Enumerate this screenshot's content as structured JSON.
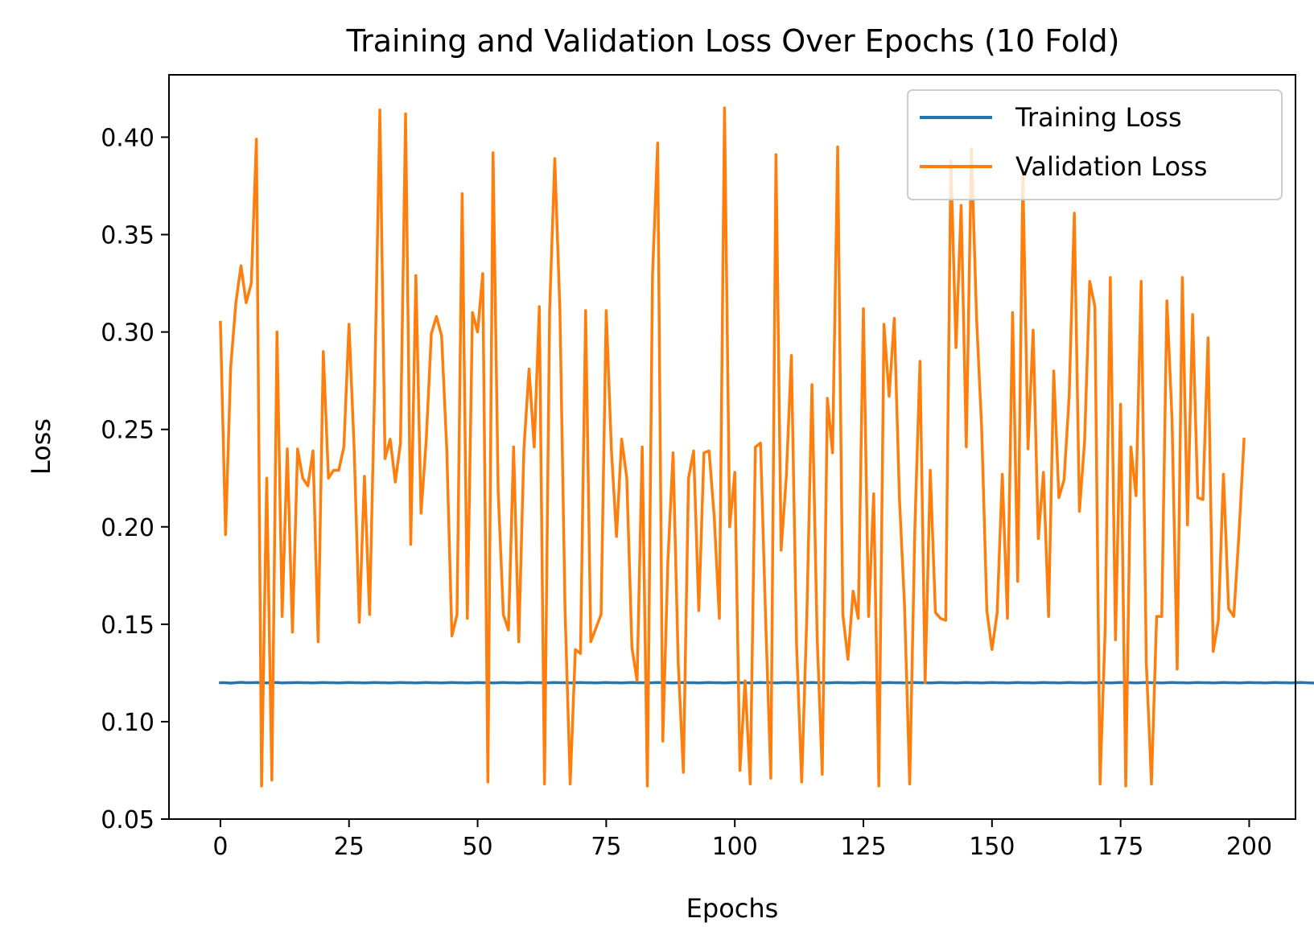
{
  "chart_data": {
    "type": "line",
    "title": "Training and Validation Loss Over Epochs (10 Fold)",
    "xlabel": "Epochs",
    "ylabel": "Loss",
    "xlim": [
      -10,
      209
    ],
    "ylim": [
      0.05,
      0.432
    ],
    "xticks": [
      0,
      25,
      50,
      75,
      100,
      125,
      150,
      175,
      200
    ],
    "yticks": [
      0.05,
      0.1,
      0.15,
      0.2,
      0.25,
      0.3,
      0.35,
      0.4
    ],
    "grid": false,
    "legend": "top-right",
    "colors": {
      "training": "#1f77b4",
      "validation": "#ff7f0e"
    },
    "series": [
      {
        "name": "Training Loss",
        "x_start": 0,
        "x_step": 1,
        "values": [
          0.12,
          0.12,
          0.1198,
          0.12,
          0.1202,
          0.12,
          0.12,
          0.1201,
          0.12,
          0.1199,
          0.12,
          0.1201,
          0.1199,
          0.12,
          0.12,
          0.1201,
          0.12,
          0.12,
          0.1199,
          0.12,
          0.1201,
          0.12,
          0.12,
          0.1199,
          0.12,
          0.1201,
          0.12,
          0.12,
          0.1199,
          0.12,
          0.1201,
          0.12,
          0.12,
          0.1199,
          0.12,
          0.1201,
          0.12,
          0.12,
          0.1199,
          0.12,
          0.1201,
          0.12,
          0.12,
          0.1199,
          0.12,
          0.1201,
          0.12,
          0.12,
          0.1199,
          0.12,
          0.1201,
          0.12,
          0.12,
          0.1199,
          0.12,
          0.1201,
          0.12,
          0.12,
          0.1199,
          0.12,
          0.1201,
          0.12,
          0.12,
          0.1199,
          0.12,
          0.1201,
          0.12,
          0.12,
          0.1199,
          0.12,
          0.1201,
          0.12,
          0.12,
          0.1199,
          0.12,
          0.1201,
          0.12,
          0.12,
          0.1199,
          0.12,
          0.1201,
          0.12,
          0.12,
          0.1199,
          0.12,
          0.1201,
          0.12,
          0.12,
          0.1199,
          0.12,
          0.1201,
          0.12,
          0.12,
          0.1199,
          0.12,
          0.1201,
          0.12,
          0.12,
          0.1199,
          0.12,
          0.1201,
          0.12,
          0.12,
          0.1199,
          0.12,
          0.1201,
          0.12,
          0.12,
          0.1199,
          0.12,
          0.1201,
          0.12,
          0.12,
          0.1199,
          0.12,
          0.1201,
          0.12,
          0.12,
          0.1199,
          0.12,
          0.1201,
          0.12,
          0.12,
          0.1199,
          0.12,
          0.1201,
          0.12,
          0.12,
          0.1199,
          0.12,
          0.1201,
          0.12,
          0.12,
          0.1199,
          0.12,
          0.1201,
          0.12,
          0.12,
          0.1199,
          0.12,
          0.1201,
          0.12,
          0.12,
          0.1199,
          0.12,
          0.1201,
          0.12,
          0.12,
          0.1199,
          0.12,
          0.1201,
          0.12,
          0.12,
          0.1199,
          0.12,
          0.1201,
          0.12,
          0.12,
          0.1199,
          0.12,
          0.1201,
          0.12,
          0.12,
          0.1199,
          0.12,
          0.1201,
          0.12,
          0.12,
          0.1199,
          0.12,
          0.1201,
          0.12,
          0.12,
          0.1199,
          0.12,
          0.1201,
          0.12,
          0.12,
          0.1199,
          0.12,
          0.1201,
          0.12,
          0.12,
          0.1199,
          0.12,
          0.1201,
          0.12,
          0.12,
          0.1199,
          0.12,
          0.1201,
          0.12,
          0.12,
          0.1199,
          0.12,
          0.1201,
          0.12,
          0.12,
          0.1199,
          0.12,
          0.1201,
          0.12,
          0.12,
          0.1199,
          0.12,
          0.1201,
          0.12,
          0.12,
          0.1199,
          0.12,
          0.1201,
          0.12,
          0.1199,
          0.1198
        ]
      },
      {
        "name": "Validation Loss",
        "x_start": 0,
        "x_step": 1,
        "values": [
          0.305,
          0.196,
          0.282,
          0.315,
          0.334,
          0.315,
          0.325,
          0.399,
          0.067,
          0.225,
          0.07,
          0.3,
          0.154,
          0.24,
          0.146,
          0.24,
          0.225,
          0.221,
          0.239,
          0.141,
          0.29,
          0.225,
          0.229,
          0.229,
          0.241,
          0.304,
          0.24,
          0.151,
          0.226,
          0.155,
          0.274,
          0.414,
          0.235,
          0.245,
          0.223,
          0.243,
          0.412,
          0.191,
          0.329,
          0.207,
          0.244,
          0.299,
          0.308,
          0.298,
          0.24,
          0.144,
          0.155,
          0.371,
          0.153,
          0.31,
          0.3,
          0.33,
          0.069,
          0.392,
          0.218,
          0.155,
          0.147,
          0.241,
          0.141,
          0.24,
          0.281,
          0.241,
          0.313,
          0.068,
          0.311,
          0.389,
          0.311,
          0.157,
          0.068,
          0.137,
          0.135,
          0.311,
          0.141,
          0.148,
          0.155,
          0.311,
          0.24,
          0.195,
          0.245,
          0.225,
          0.138,
          0.121,
          0.241,
          0.067,
          0.329,
          0.397,
          0.09,
          0.183,
          0.238,
          0.13,
          0.074,
          0.225,
          0.239,
          0.157,
          0.238,
          0.239,
          0.205,
          0.153,
          0.415,
          0.2,
          0.228,
          0.075,
          0.121,
          0.068,
          0.241,
          0.243,
          0.152,
          0.071,
          0.391,
          0.188,
          0.225,
          0.288,
          0.14,
          0.069,
          0.154,
          0.273,
          0.144,
          0.073,
          0.266,
          0.238,
          0.395,
          0.155,
          0.132,
          0.167,
          0.153,
          0.312,
          0.154,
          0.217,
          0.067,
          0.304,
          0.267,
          0.307,
          0.215,
          0.159,
          0.068,
          0.199,
          0.285,
          0.12,
          0.229,
          0.156,
          0.153,
          0.152,
          0.388,
          0.292,
          0.365,
          0.241,
          0.394,
          0.307,
          0.25,
          0.157,
          0.137,
          0.156,
          0.227,
          0.153,
          0.31,
          0.172,
          0.381,
          0.24,
          0.301,
          0.194,
          0.228,
          0.154,
          0.28,
          0.215,
          0.224,
          0.267,
          0.361,
          0.208,
          0.244,
          0.326,
          0.313,
          0.068,
          0.148,
          0.328,
          0.142,
          0.263,
          0.067,
          0.241,
          0.216,
          0.326,
          0.13,
          0.068,
          0.154,
          0.154,
          0.316,
          0.255,
          0.127,
          0.328,
          0.201,
          0.309,
          0.215,
          0.214,
          0.297,
          0.136,
          0.152,
          0.227,
          0.158,
          0.154,
          0.196,
          0.245
        ]
      }
    ]
  }
}
